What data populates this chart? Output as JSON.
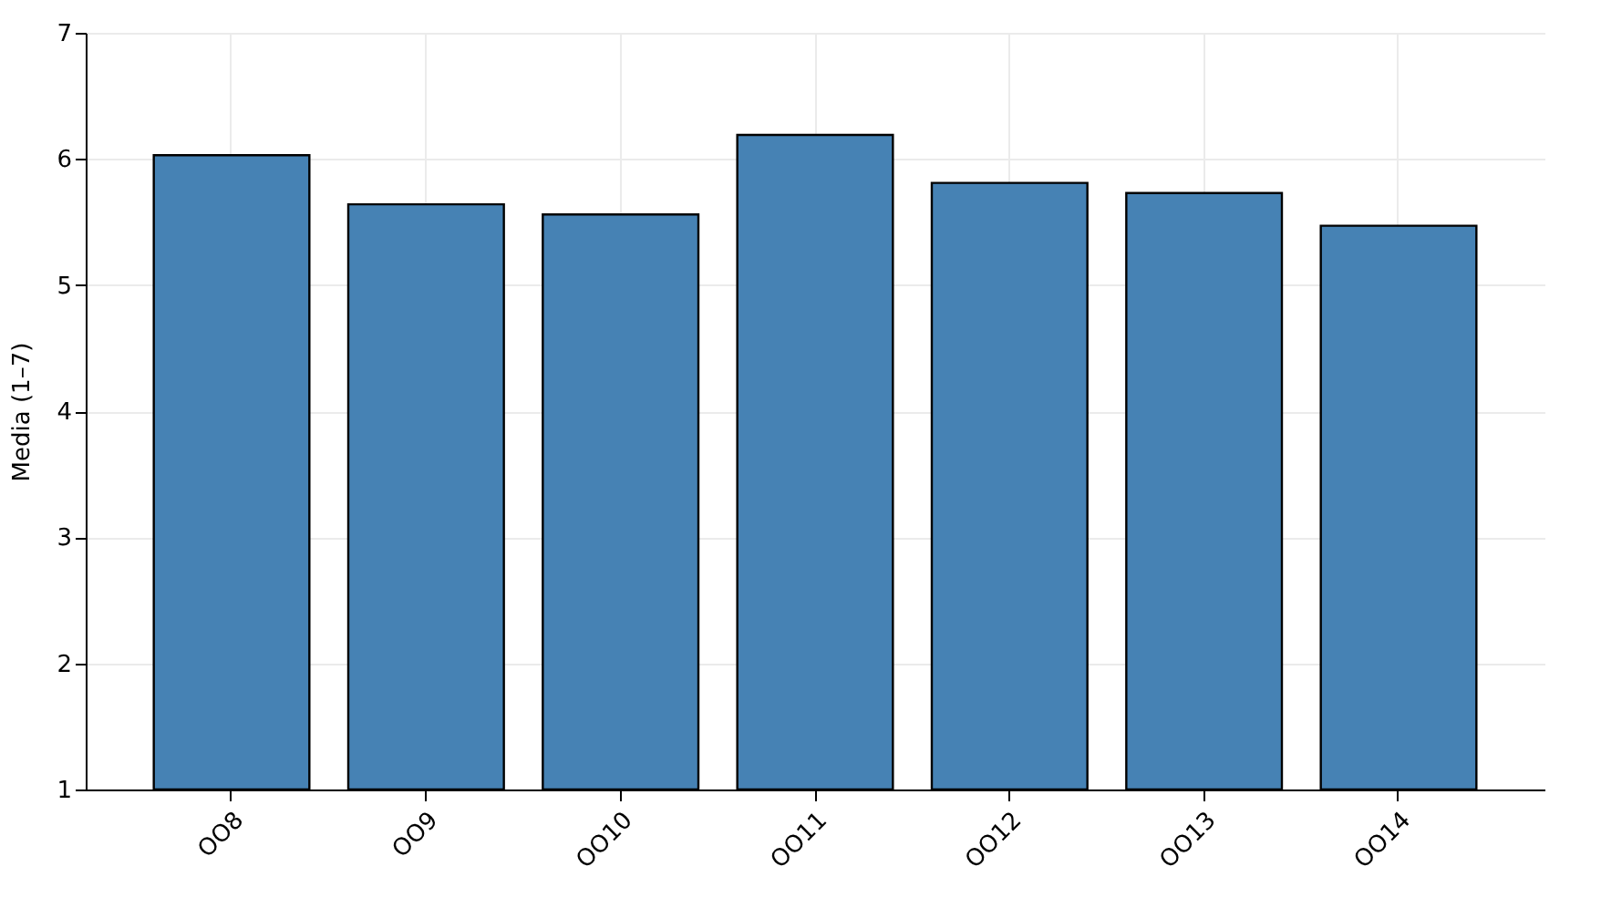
{
  "chart_data": {
    "type": "bar",
    "ylabel": "Media (1–7)",
    "categories": [
      "OO8",
      "OO9",
      "OO10",
      "OO11",
      "OO12",
      "OO13",
      "OO14"
    ],
    "values": [
      6.03,
      5.64,
      5.56,
      6.19,
      5.81,
      5.73,
      5.47
    ],
    "color": "#4682b4",
    "ylim": [
      1,
      7
    ],
    "yticks": [
      1,
      2,
      3,
      4,
      5,
      6,
      7
    ],
    "grid": true
  }
}
